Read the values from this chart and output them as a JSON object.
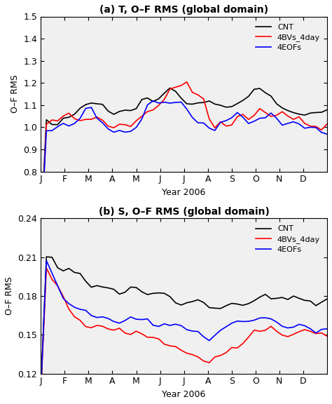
{
  "title_a": "(a) T, O–F RMS (global domain)",
  "title_b": "(b) S, O–F RMS (global domain)",
  "xlabel": "Year 2006",
  "ylabel": "O–F RMS",
  "months": [
    "J",
    "F",
    "M",
    "A",
    "M",
    "J",
    "J",
    "A",
    "S",
    "O",
    "N",
    "D"
  ],
  "ylim_a": [
    0.8,
    1.5
  ],
  "ylim_b": [
    0.12,
    0.24
  ],
  "yticks_a": [
    0.8,
    0.9,
    1.0,
    1.1,
    1.2,
    1.3,
    1.4,
    1.5
  ],
  "yticks_b": [
    0.12,
    0.15,
    0.18,
    0.21,
    0.24
  ],
  "colors": {
    "CNT": "#000000",
    "4BVs_4day": "#ff0000",
    "4EOFs": "#0000ff"
  },
  "legend_labels": [
    "CNT",
    "4BVs_4day",
    "4EOFs"
  ],
  "linewidth": 1.2,
  "background_color": "#f0f0f0"
}
